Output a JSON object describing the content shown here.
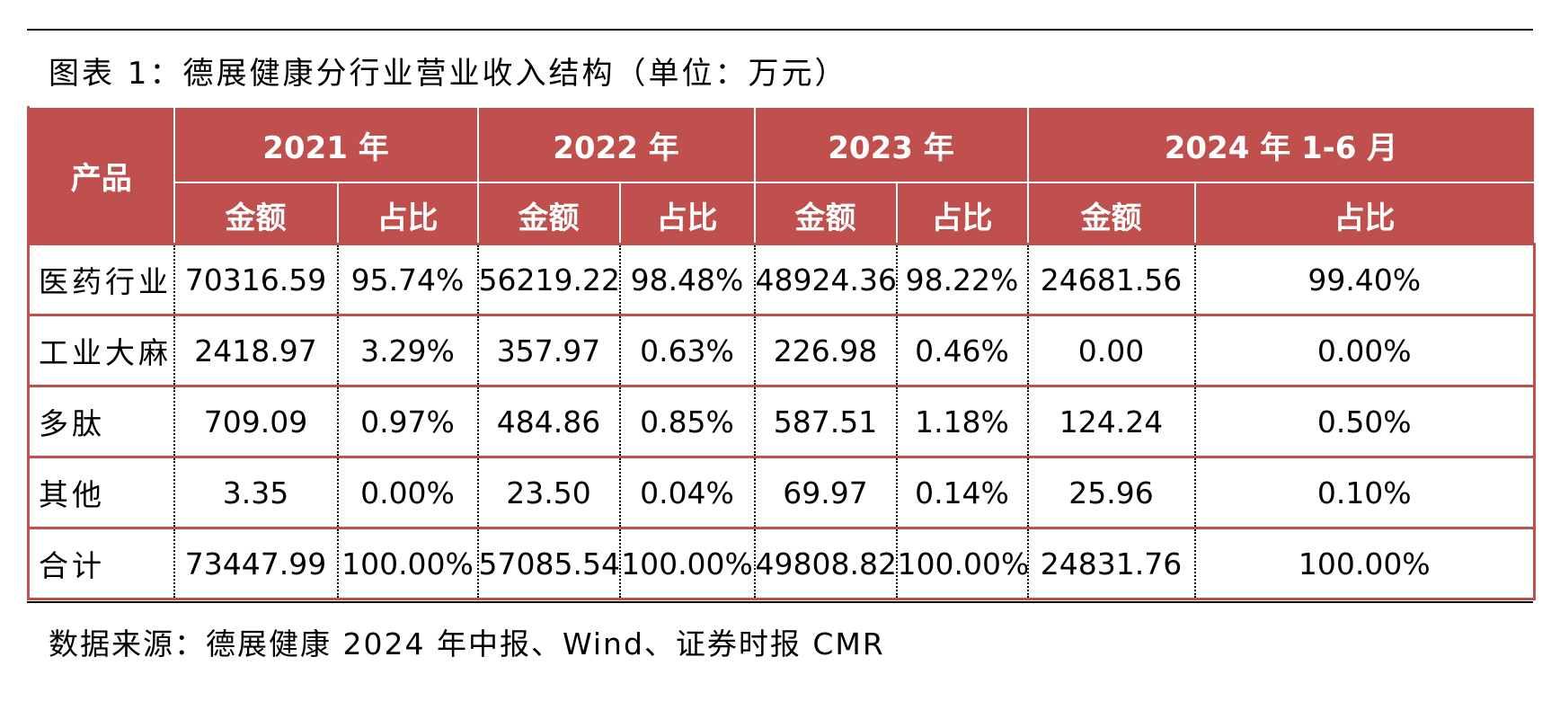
{
  "title": "图表 1：德展健康分行业营业收入结构（单位：万元）",
  "table": {
    "product_header": "产品",
    "years": [
      "2021 年",
      "2022 年",
      "2023 年",
      "2024 年 1-6 月"
    ],
    "sub_headers": [
      "金额",
      "占比",
      "金额",
      "占比",
      "金额",
      "占比",
      "金额",
      "占比"
    ],
    "rows": [
      {
        "label": "医药行业",
        "cells": [
          "70316.59",
          "95.74%",
          "56219.22",
          "98.48%",
          "48924.36",
          "98.22%",
          "24681.56",
          "99.40%"
        ]
      },
      {
        "label": "工业大麻",
        "cells": [
          "2418.97",
          "3.29%",
          "357.97",
          "0.63%",
          "226.98",
          "0.46%",
          "0.00",
          "0.00%"
        ]
      },
      {
        "label": "多肽",
        "cells": [
          "709.09",
          "0.97%",
          "484.86",
          "0.85%",
          "587.51",
          "1.18%",
          "124.24",
          "0.50%"
        ]
      },
      {
        "label": "其他",
        "cells": [
          "3.35",
          "0.00%",
          "23.50",
          "0.04%",
          "69.97",
          "0.14%",
          "25.96",
          "0.10%"
        ]
      },
      {
        "label": "合计",
        "cells": [
          "73447.99",
          "100.00%",
          "57085.54",
          "100.00%",
          "49808.82",
          "100.00%",
          "24831.76",
          "100.00%"
        ]
      }
    ]
  },
  "source": "数据来源：德展健康 2024 年中报、Wind、证券时报 CMR",
  "colors": {
    "header_bg": "#c0504d",
    "header_text": "#ffffff"
  }
}
